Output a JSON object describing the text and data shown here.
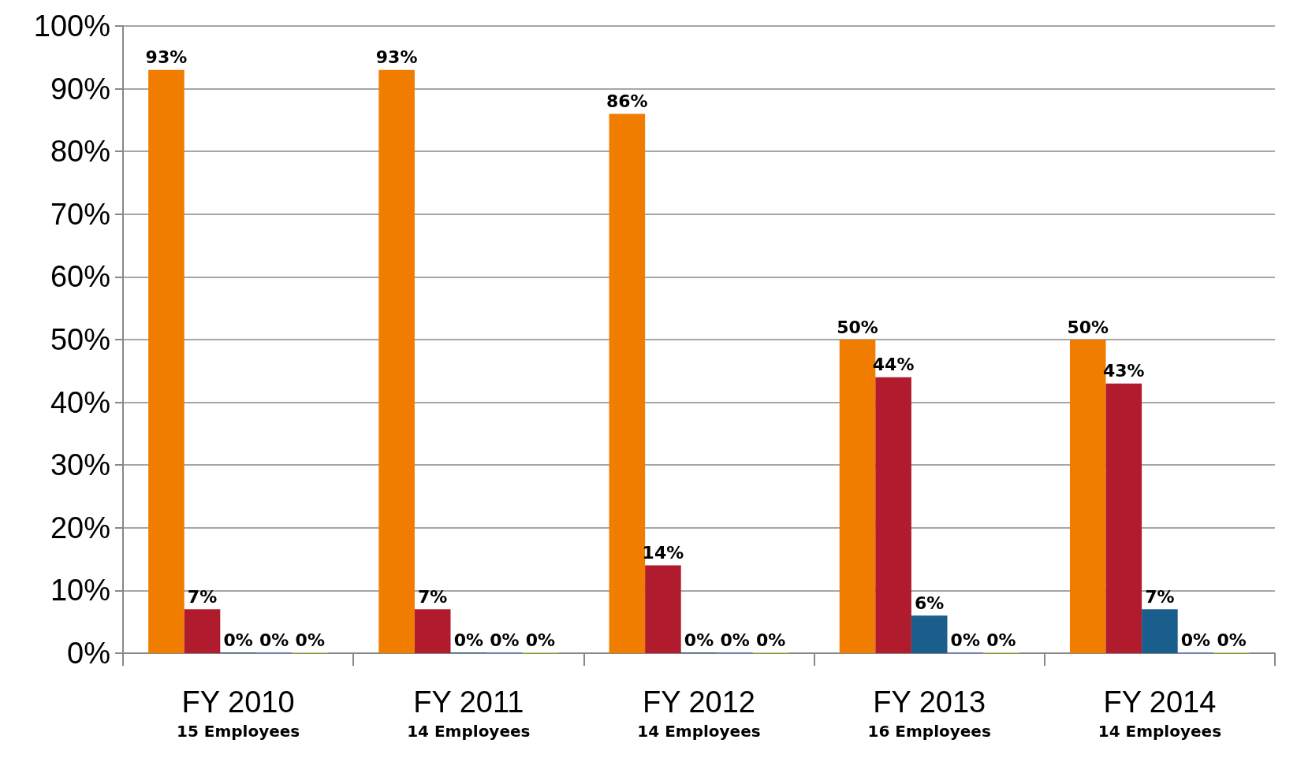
{
  "chart_data": {
    "type": "bar",
    "categories": [
      "FY 2010\n15 Employees",
      "FY 2011\n14 Employees",
      "FY 2012\n14 Employees",
      "FY 2013\n16 Employees",
      "FY 2014\n14 Employees"
    ],
    "series": [
      {
        "color": "#f07d00",
        "values": [
          93,
          93,
          86,
          50,
          50
        ],
        "value_labels": [
          "93%",
          "93%",
          "86%",
          "50%",
          "50%"
        ]
      },
      {
        "color": "#b01c2e",
        "values": [
          7,
          7,
          14,
          44,
          43
        ],
        "value_labels": [
          "7%",
          "7%",
          "14%",
          "44%",
          "43%"
        ]
      },
      {
        "color": "#1a5f8c",
        "values": [
          0,
          0,
          0,
          6,
          7
        ],
        "value_labels": [
          "0%",
          "0%",
          "0%",
          "6%",
          "7%"
        ]
      },
      {
        "values": [
          0,
          0,
          0,
          0,
          0
        ],
        "value_labels": [
          "0%",
          "0%",
          "0%",
          "0%",
          "0%"
        ]
      },
      {
        "values": [
          0,
          0,
          0,
          0,
          0
        ],
        "value_labels": [
          "0%",
          "0%",
          "0%",
          "0%",
          "0%"
        ]
      }
    ],
    "ylim": [
      0,
      100
    ],
    "yticks": [
      {
        "value": 0,
        "label": "0%"
      },
      {
        "value": 10,
        "label": "10%"
      },
      {
        "value": 20,
        "label": "20%"
      },
      {
        "value": 30,
        "label": "30%"
      },
      {
        "value": 40,
        "label": "40%"
      },
      {
        "value": 50,
        "label": "50%"
      },
      {
        "value": 60,
        "label": "60%"
      },
      {
        "value": 70,
        "label": "70%"
      },
      {
        "value": 80,
        "label": "80%"
      },
      {
        "value": 90,
        "label": "90%"
      },
      {
        "value": 100,
        "label": "100%"
      }
    ],
    "grid": "y"
  }
}
